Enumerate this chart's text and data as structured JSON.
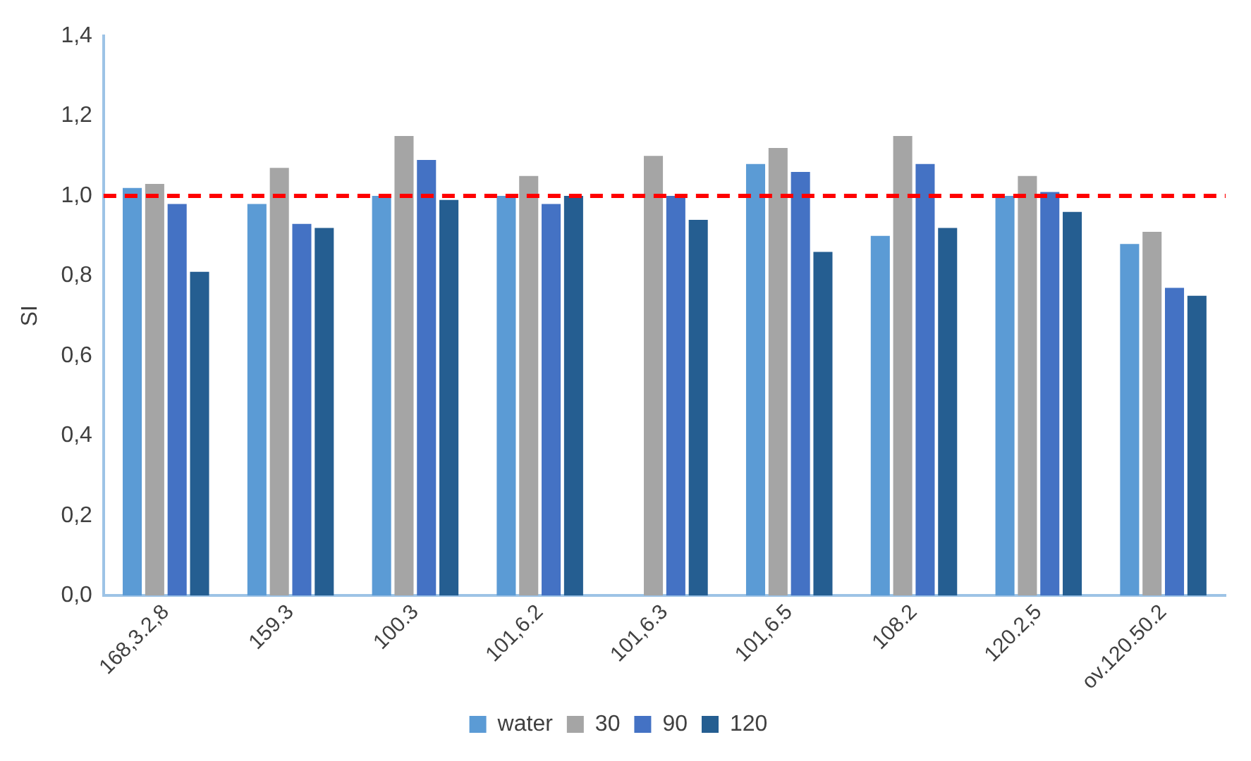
{
  "chart_data": {
    "type": "bar",
    "ylabel": "SI",
    "categories": [
      "168,3.2,8",
      "159.3",
      "100.3",
      "101,6.2",
      "101,6.3",
      "101,6.5",
      "108.2",
      "120.2,5",
      "ov.120.50.2"
    ],
    "series": [
      {
        "name": "water",
        "color": "#5b9bd5",
        "values": [
          1.02,
          0.98,
          1.0,
          1.0,
          null,
          1.08,
          0.9,
          1.0,
          0.88
        ]
      },
      {
        "name": "30",
        "color": "#a5a5a5",
        "values": [
          1.03,
          1.07,
          1.15,
          1.05,
          1.1,
          1.12,
          1.15,
          1.05,
          0.91
        ]
      },
      {
        "name": "90",
        "color": "#4472c4",
        "values": [
          0.98,
          0.93,
          1.09,
          0.98,
          1.0,
          1.06,
          1.08,
          1.01,
          0.77
        ]
      },
      {
        "name": "120",
        "color": "#255e91",
        "values": [
          0.81,
          0.92,
          0.99,
          1.0,
          0.94,
          0.86,
          0.92,
          0.96,
          0.75
        ]
      }
    ],
    "ylim": [
      0,
      1.4
    ],
    "yticks": [
      {
        "value": 0,
        "label": "0,0"
      },
      {
        "value": 0.2,
        "label": "0,2"
      },
      {
        "value": 0.4,
        "label": "0,4"
      },
      {
        "value": 0.6,
        "label": "0,6"
      },
      {
        "value": 0.8,
        "label": "0,8"
      },
      {
        "value": 1,
        "label": "1,0"
      },
      {
        "value": 1.2,
        "label": "1,2"
      },
      {
        "value": 1.4,
        "label": "1,4"
      }
    ],
    "ref_lines": [
      {
        "axis": "y",
        "value": 1,
        "color": "#ff0000",
        "line_style": "dashed"
      }
    ],
    "grid": false,
    "legend": "bottom"
  }
}
